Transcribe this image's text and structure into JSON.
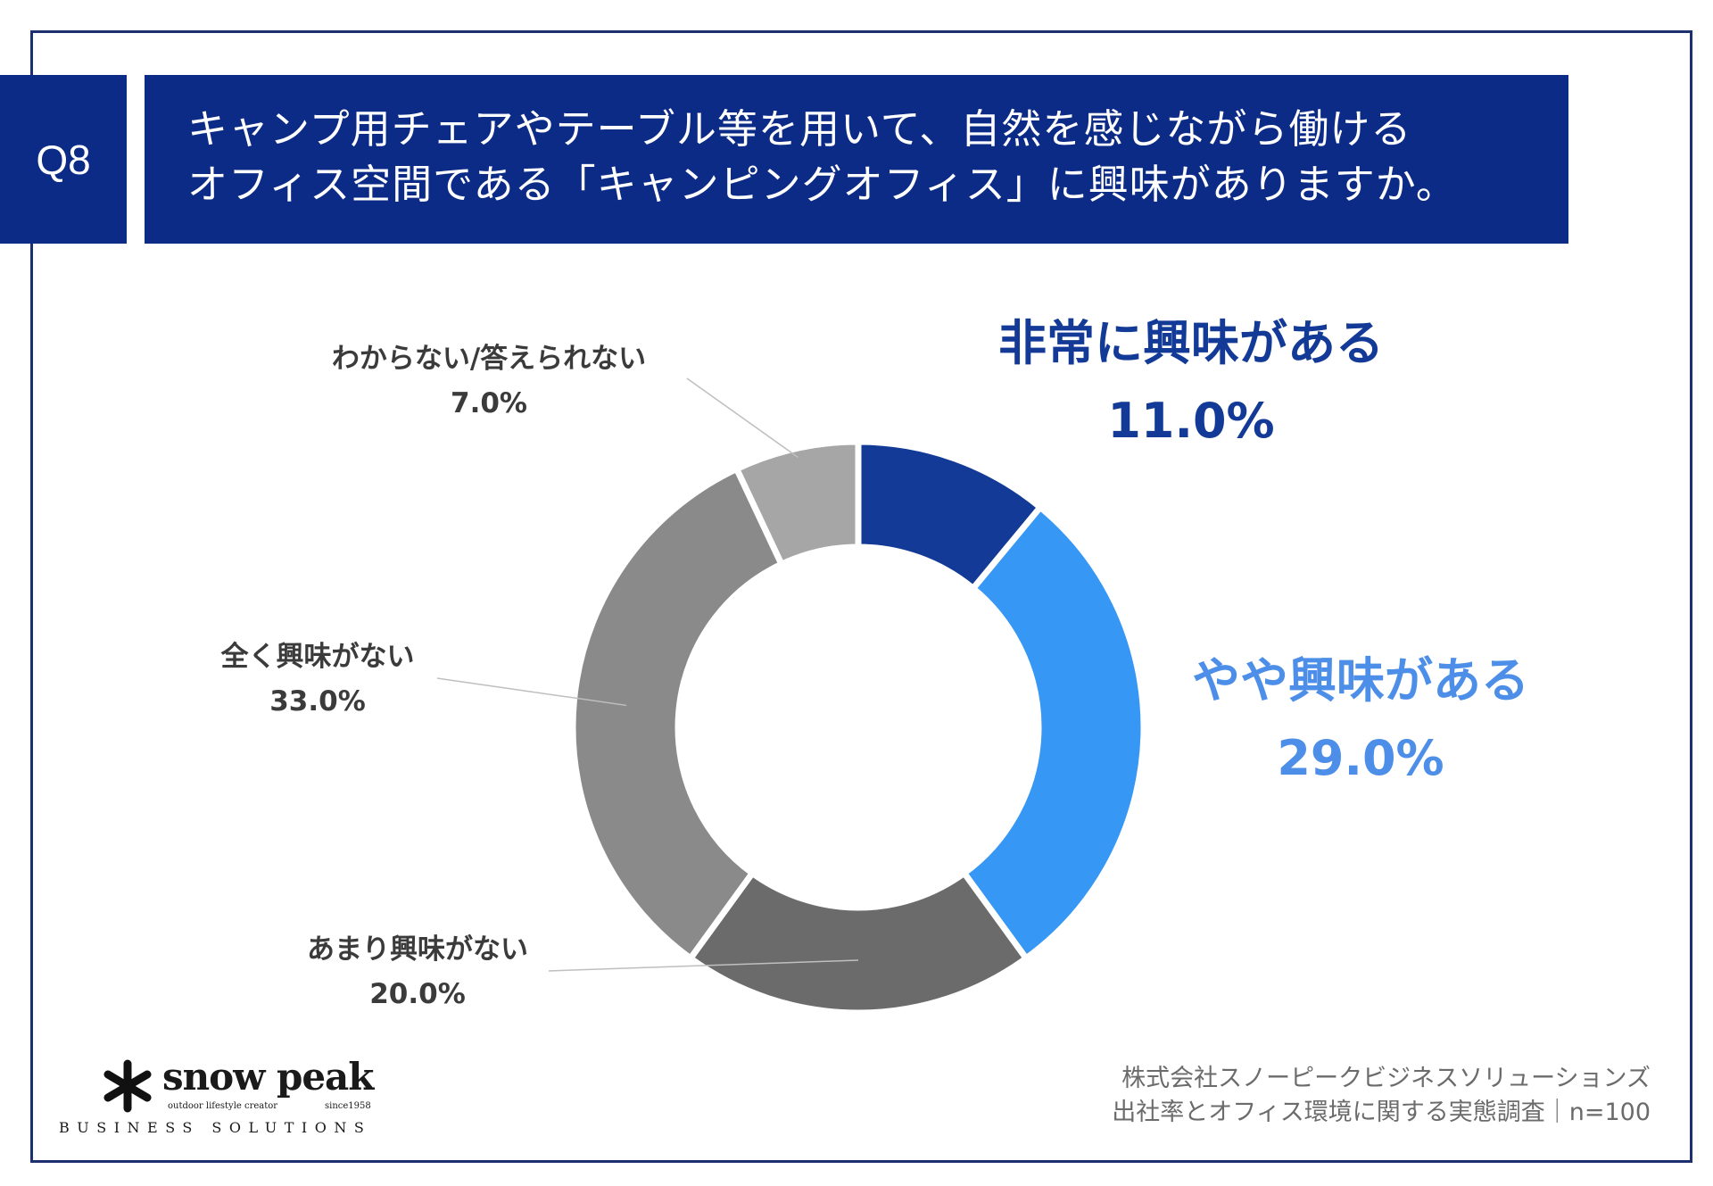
{
  "header": {
    "badge": "Q8",
    "question_line1": "キャンプ用チェアやテーブル等を用いて、自然を感じながら働ける",
    "question_line2": "オフィス空間である「キャンピングオフィス」に興味がありますか。"
  },
  "chart_data": {
    "type": "pie",
    "donut": true,
    "unit": "%",
    "slices": [
      {
        "label": "非常に興味がある",
        "value": 11.0,
        "display": "11.0%",
        "color": "#123a96",
        "label_color": "#123a96"
      },
      {
        "label": "やや興味がある",
        "value": 29.0,
        "display": "29.0%",
        "color": "#3797f5",
        "label_color": "#4d8fe8"
      },
      {
        "label": "あまり興味がない",
        "value": 20.0,
        "display": "20.0%",
        "color": "#6b6b6b",
        "label_color": "#3b3b3b"
      },
      {
        "label": "全く興味がない",
        "value": 33.0,
        "display": "33.0%",
        "color": "#8a8a8a",
        "label_color": "#3b3b3b"
      },
      {
        "label": "わからない/答えられない",
        "value": 7.0,
        "display": "7.0%",
        "color": "#a6a6a6",
        "label_color": "#3b3b3b"
      }
    ]
  },
  "source": {
    "line1": "株式会社スノーピークビジネスソリューションズ",
    "line2": "出社率とオフィス環境に関する実態調査｜n=100"
  },
  "logo": {
    "name": "snow peak",
    "tagline": "outdoor lifestyle creator",
    "since": "since1958",
    "division": "BUSINESS SOLUTIONS"
  }
}
